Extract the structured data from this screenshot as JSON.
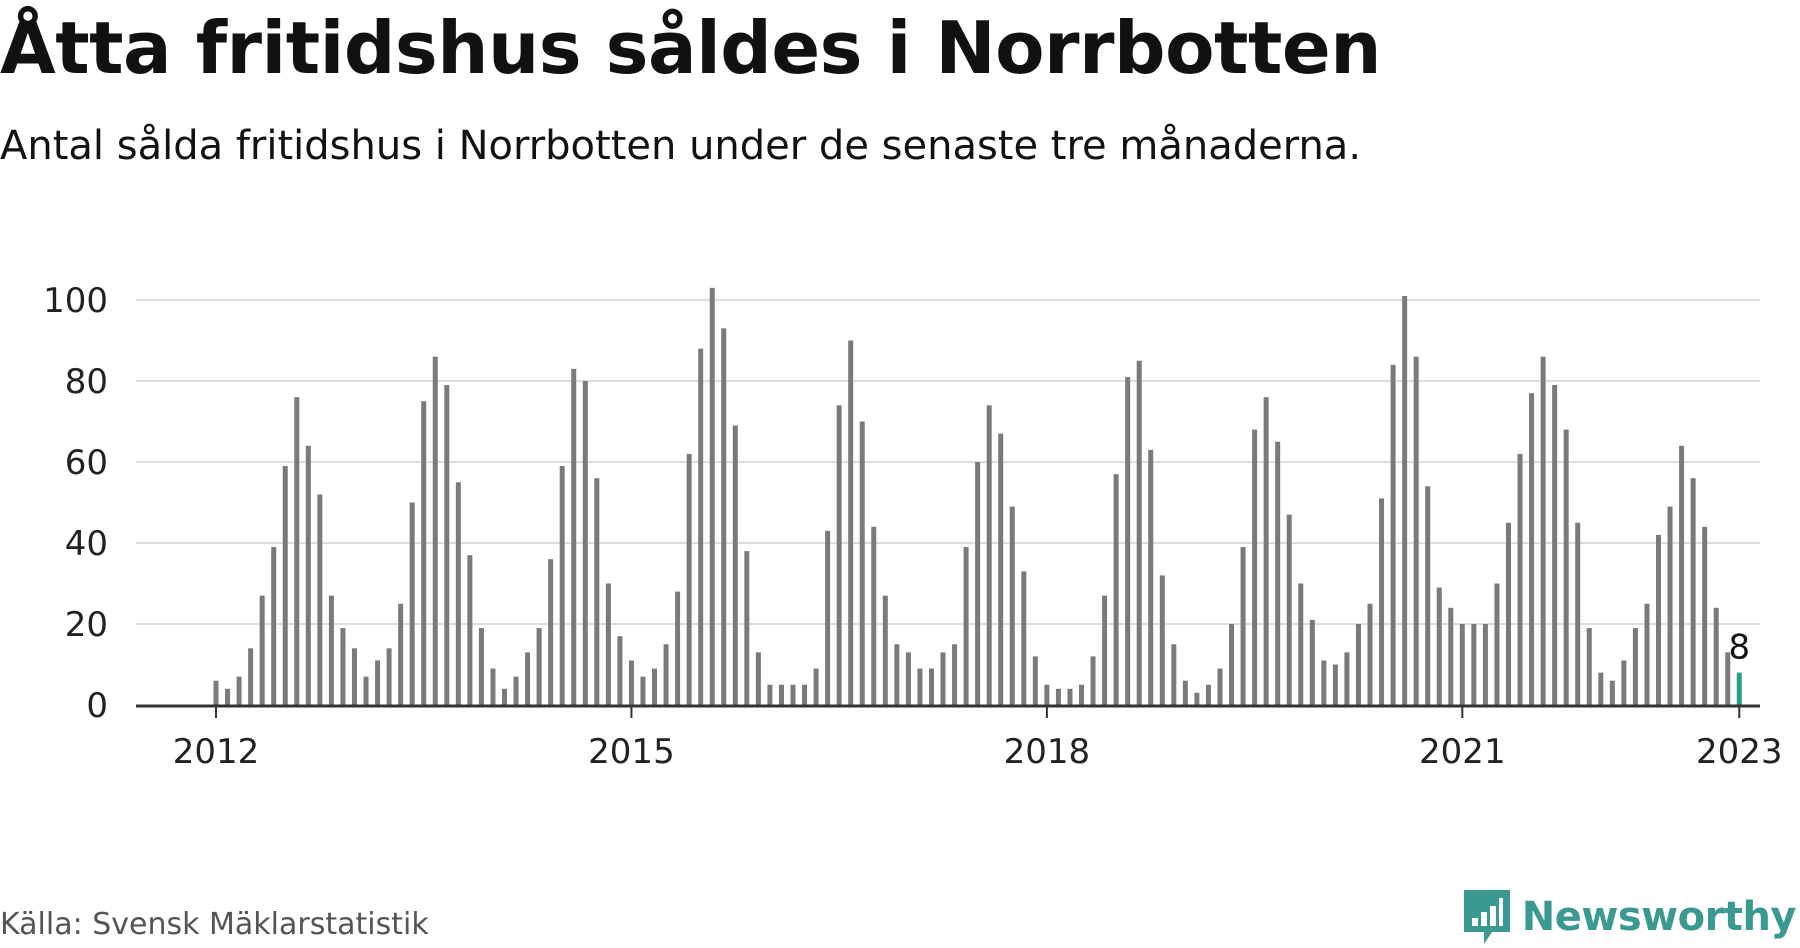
{
  "header": {
    "title": "Åtta fritidshus såldes i Norrbotten",
    "subtitle": "Antal sålda fritidshus i Norrbotten under de senaste tre månaderna."
  },
  "footer": {
    "source": "Källa: Svensk Mäklarstatistik",
    "brand": "Newsworthy"
  },
  "colors": {
    "bar": "#7a7a7a",
    "highlight": "#2a9d8f",
    "grid": "#dddddd",
    "axis": "#333333",
    "brand": "#3a9a92"
  },
  "chart_data": {
    "type": "bar",
    "title": "Åtta fritidshus såldes i Norrbotten",
    "subtitle": "Antal sålda fritidshus i Norrbotten under de senaste tre månaderna.",
    "xlabel": "",
    "ylabel": "",
    "ylim": [
      0,
      100
    ],
    "yticks": [
      0,
      20,
      40,
      60,
      80,
      100
    ],
    "xticks": [
      {
        "label": "2012",
        "index": 0
      },
      {
        "label": "2015",
        "index": 36
      },
      {
        "label": "2018",
        "index": 72
      },
      {
        "label": "2021",
        "index": 108
      },
      {
        "label": "2023",
        "index": 132
      }
    ],
    "grid": true,
    "period": "monthly, Jan 2012 – Jan 2023",
    "values": [
      6,
      4,
      7,
      14,
      27,
      39,
      59,
      76,
      64,
      52,
      27,
      19,
      14,
      7,
      11,
      14,
      25,
      50,
      75,
      86,
      79,
      55,
      37,
      19,
      9,
      4,
      7,
      13,
      19,
      36,
      59,
      83,
      80,
      56,
      30,
      17,
      11,
      7,
      9,
      15,
      28,
      62,
      88,
      103,
      93,
      69,
      38,
      13,
      5,
      5,
      5,
      5,
      9,
      43,
      74,
      90,
      70,
      44,
      27,
      15,
      13,
      9,
      9,
      13,
      15,
      39,
      60,
      74,
      67,
      49,
      33,
      12,
      5,
      4,
      4,
      5,
      12,
      27,
      57,
      81,
      85,
      63,
      32,
      15,
      6,
      3,
      5,
      9,
      20,
      39,
      68,
      76,
      65,
      47,
      30,
      21,
      11,
      10,
      13,
      20,
      25,
      51,
      84,
      101,
      86,
      54,
      29,
      24,
      20,
      20,
      20,
      30,
      45,
      62,
      77,
      86,
      79,
      68,
      45,
      19,
      8,
      6,
      11,
      19,
      25,
      42,
      49,
      64,
      56,
      44,
      24,
      13,
      8
    ],
    "highlight": {
      "index": 132,
      "value": 8,
      "label": "8"
    }
  }
}
